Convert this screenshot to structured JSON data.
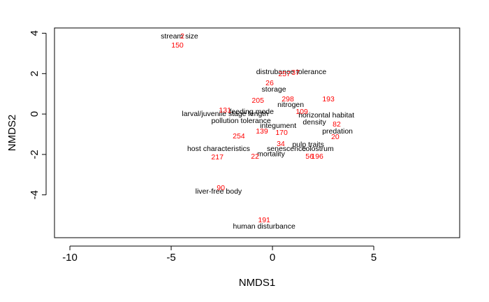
{
  "chart_data": {
    "type": "scatter",
    "xlabel": "NMDS1",
    "ylabel": "NMDS2",
    "xlim": [
      -10.76,
      9.24
    ],
    "ylim": [
      -6.12,
      4.26
    ],
    "xticks": [
      -10,
      -5,
      0,
      5
    ],
    "yticks": [
      -4,
      -2,
      0,
      2,
      4
    ],
    "series": [
      {
        "color": "#000000",
        "labels": [
          "stream size",
          "distrubance tolerance",
          "storage",
          "nitrogen",
          "larval/juvenile stage length",
          "feeding mode",
          "horizontal habitat",
          "pollution tolerance",
          "density",
          "integument",
          "predation",
          "host characteristics",
          "senescence",
          "mortality",
          "pulp traits",
          "colostrum",
          "liver-free body",
          "human disturbance"
        ],
        "x": [
          -4.59,
          0.93,
          0.07,
          0.9,
          -2.34,
          -1.03,
          2.66,
          -1.55,
          2.07,
          0.28,
          3.21,
          -2.66,
          0.69,
          -0.07,
          1.76,
          2.24,
          -2.66,
          -0.41
        ],
        "y": [
          3.84,
          2.08,
          1.21,
          0.45,
          0,
          0.1,
          -0.07,
          -0.35,
          -0.42,
          -0.59,
          -0.87,
          -1.73,
          -1.73,
          -2.0,
          -1.52,
          -1.73,
          -3.84,
          -5.57
        ]
      },
      {
        "color": "#ff0000",
        "labels": [
          "2",
          "150",
          "257",
          "37",
          "26",
          "205",
          "298",
          "193",
          "131",
          "109",
          "82",
          "139",
          "170",
          "254",
          "34",
          "20",
          "217",
          "22",
          "56",
          "196",
          "90",
          "191"
        ],
        "x": [
          -4.45,
          -4.69,
          0.59,
          1.14,
          -0.14,
          -0.72,
          0.76,
          2.76,
          -2.34,
          1.45,
          3.17,
          -0.52,
          0.45,
          -1.66,
          0.41,
          3.1,
          -2.72,
          -0.86,
          1.83,
          2.21,
          -2.55,
          -0.41
        ],
        "y": [
          3.84,
          3.39,
          1.97,
          2.04,
          1.52,
          0.66,
          0.73,
          0.73,
          0.17,
          0.1,
          -0.52,
          -0.87,
          -0.93,
          -1.11,
          -1.49,
          -1.14,
          -2.15,
          -2.11,
          -2.11,
          -2.11,
          -3.67,
          -5.26
        ]
      }
    ]
  }
}
